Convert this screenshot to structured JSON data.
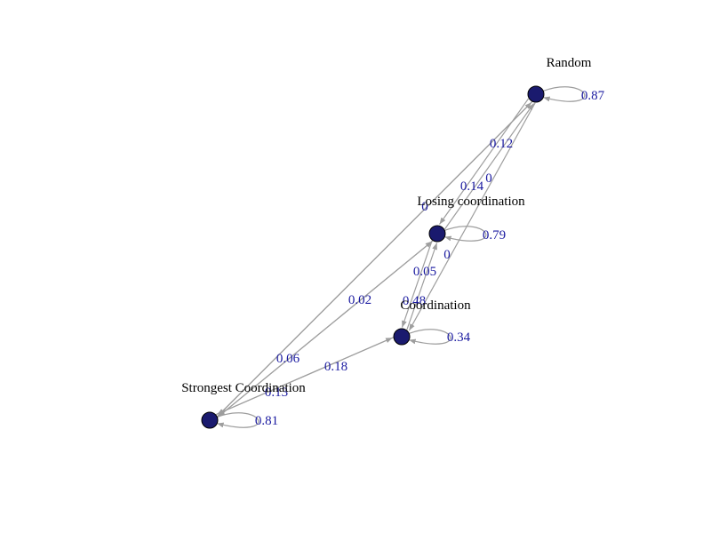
{
  "graph": {
    "nodes": [
      {
        "id": "random",
        "label": "Random"
      },
      {
        "id": "losing",
        "label": "Losing coordination"
      },
      {
        "id": "coordination",
        "label": "Coordination"
      },
      {
        "id": "strongest",
        "label": "Strongest Coordination"
      }
    ],
    "edges": [
      {
        "from": "random",
        "to": "random",
        "weight": "0.87"
      },
      {
        "from": "losing",
        "to": "losing",
        "weight": "0.79"
      },
      {
        "from": "coordination",
        "to": "coordination",
        "weight": "0.34"
      },
      {
        "from": "strongest",
        "to": "strongest",
        "weight": "0.81"
      },
      {
        "from": "random",
        "to": "losing",
        "weight": "0.14"
      },
      {
        "from": "random",
        "to": "coordination",
        "weight": "0"
      },
      {
        "from": "random",
        "to": "strongest",
        "weight": "0"
      },
      {
        "from": "losing",
        "to": "random",
        "weight": "0"
      },
      {
        "from": "losing",
        "to": "coordination",
        "weight": "0.05"
      },
      {
        "from": "losing",
        "to": "strongest",
        "weight": "0.06"
      },
      {
        "from": "coordination",
        "to": "losing",
        "weight": "0.48"
      },
      {
        "from": "coordination",
        "to": "strongest",
        "weight": "0.13"
      },
      {
        "from": "strongest",
        "to": "random",
        "weight": "0.12"
      },
      {
        "from": "strongest",
        "to": "losing",
        "weight": "0.02"
      },
      {
        "from": "strongest",
        "to": "coordination",
        "weight": "0.18"
      }
    ],
    "colors": {
      "node_fill": "#1a1a6e",
      "edge": "#9e9e9e",
      "edge_label": "#1a1aa0",
      "node_label": "#000000"
    }
  }
}
